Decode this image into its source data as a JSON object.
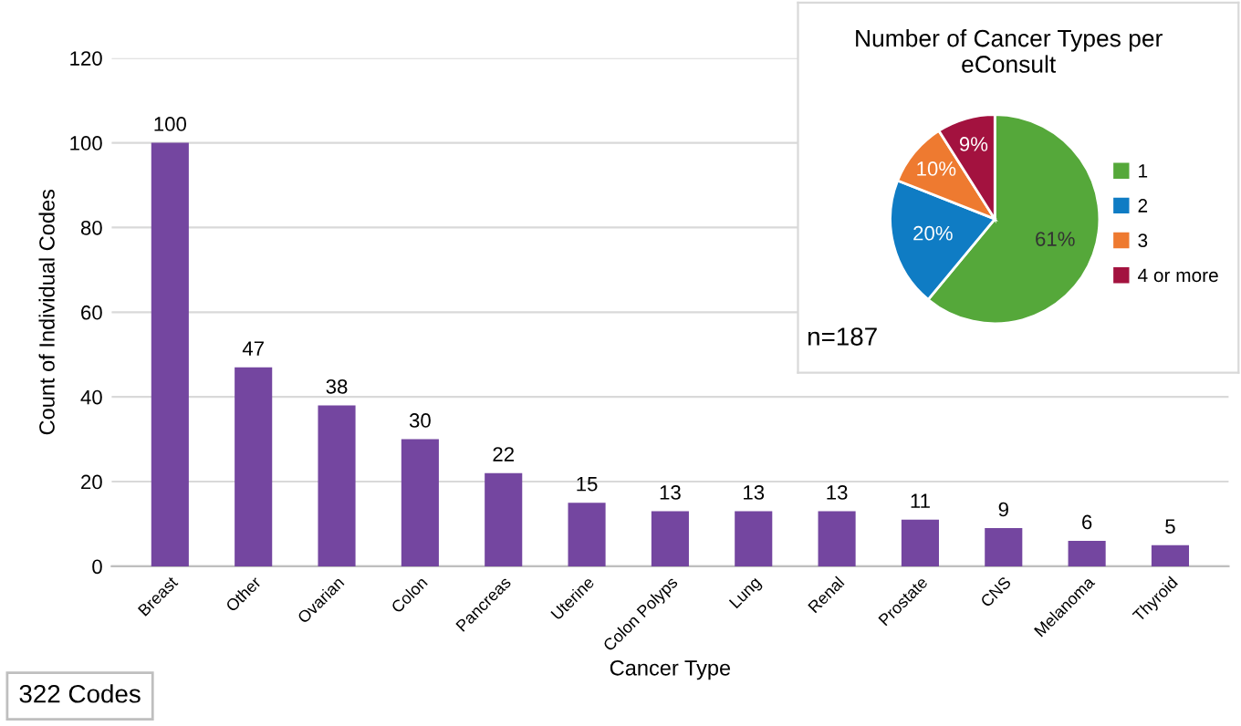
{
  "chart_data": [
    {
      "type": "bar",
      "xlabel": "Cancer Type",
      "ylabel": "Count of Individual Codes",
      "categories": [
        "Breast",
        "Other",
        "Ovarian",
        "Colon",
        "Pancreas",
        "Uterine",
        "Colon Polyps",
        "Lung",
        "Renal",
        "Prostate",
        "CNS",
        "Melanoma",
        "Thyroid"
      ],
      "values": [
        100,
        47,
        38,
        30,
        22,
        15,
        13,
        13,
        13,
        11,
        9,
        6,
        5
      ],
      "color": "#7446a0",
      "ylim": [
        0,
        120
      ],
      "yticks": [
        0,
        20,
        40,
        60,
        80,
        100,
        120
      ],
      "grid": "y",
      "data_labels": true,
      "annotations": [
        "322 Codes"
      ]
    },
    {
      "type": "pie",
      "title": "Number of Cancer Types per eConsult",
      "categories": [
        "1",
        "2",
        "3",
        "4 or more"
      ],
      "values": [
        61,
        20,
        10,
        9
      ],
      "colors": [
        "#55a83a",
        "#0f7cc4",
        "#ee7a30",
        "#a3123f"
      ],
      "value_labels": [
        "61%",
        "20%",
        "10%",
        "9%"
      ],
      "legend": "right",
      "annotations": [
        "n=187"
      ]
    }
  ]
}
